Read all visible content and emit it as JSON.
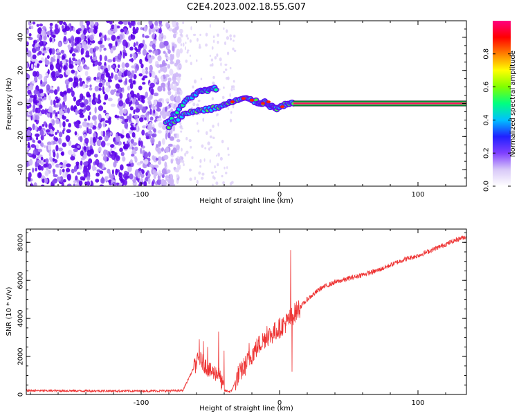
{
  "title": "C2E4.2023.002.18.55.G07",
  "colors": {
    "snr_line": "#ee3333",
    "cbar": [
      "#ffffff",
      "#d8c8f8",
      "#8040ff",
      "#2020ff",
      "#00c0ff",
      "#00ff80",
      "#80ff00",
      "#ffff00",
      "#ff8000",
      "#ff0000",
      "#ff0080"
    ]
  },
  "chart_data": [
    {
      "type": "heatmap",
      "name": "spectrogram",
      "xlabel": "Height of straight line (km)",
      "ylabel": "Frequency (Hz)",
      "xlim": [
        -183,
        135
      ],
      "ylim": [
        -50,
        50
      ],
      "xticks": [
        -100,
        0,
        100
      ],
      "xtick_labels": [
        "-100",
        "0",
        "100"
      ],
      "yticks": [
        -40,
        -20,
        0,
        20,
        40
      ],
      "ytick_labels": [
        "-40",
        "-20",
        "0",
        "20",
        "40"
      ],
      "colorbar": {
        "label": "Normalized spectral amplitude",
        "range": [
          0,
          1
        ],
        "ticks": [
          0.0,
          0.2,
          0.4,
          0.6,
          0.8
        ],
        "tick_labels": [
          "0.0",
          "0.2",
          "0.4",
          "0.6",
          "0.8"
        ]
      },
      "track": {
        "upper_branch": [
          [
            -82,
            -12
          ],
          [
            -74,
            -5
          ],
          [
            -66,
            3
          ],
          [
            -58,
            7
          ],
          [
            -52,
            8
          ],
          [
            -46,
            9
          ]
        ],
        "lower_branch": [
          [
            -80,
            -14
          ],
          [
            -72,
            -8
          ],
          [
            -64,
            -5
          ],
          [
            -56,
            -4
          ],
          [
            -48,
            -3
          ],
          [
            -40,
            -1
          ],
          [
            -34,
            1
          ],
          [
            -26,
            3
          ],
          [
            -20,
            2
          ],
          [
            -14,
            0
          ],
          [
            -10,
            1
          ],
          [
            -6,
            -2
          ],
          [
            -2,
            -3
          ],
          [
            4,
            -1
          ],
          [
            10,
            0
          ]
        ],
        "steady_line": [
          [
            10,
            0
          ],
          [
            135,
            0
          ]
        ]
      }
    },
    {
      "type": "line",
      "name": "snr",
      "xlabel": "Height of straight line (km)",
      "ylabel": "SNR (10 * v/v)",
      "xlim": [
        -183,
        135
      ],
      "ylim": [
        0,
        8700
      ],
      "xticks": [
        -100,
        0,
        100
      ],
      "xtick_labels": [
        "-100",
        "0",
        "100"
      ],
      "yticks": [
        0,
        2000,
        4000,
        6000,
        8000
      ],
      "ytick_labels": [
        "0",
        "2000",
        "4000",
        "6000",
        "8000"
      ],
      "envelope": {
        "x": [
          -183,
          -100,
          -70,
          -62,
          -58,
          -50,
          -44,
          -40,
          -35,
          -30,
          -25,
          -20,
          -15,
          -10,
          -5,
          0,
          5,
          8,
          10,
          15,
          20,
          25,
          30,
          40,
          50,
          60,
          70,
          80,
          90,
          100,
          110,
          120,
          130,
          135
        ],
        "y": [
          200,
          180,
          200,
          1400,
          1900,
          1200,
          1100,
          200,
          150,
          1000,
          1500,
          2100,
          2600,
          3000,
          3200,
          3500,
          3800,
          4000,
          4200,
          4600,
          5000,
          5300,
          5600,
          5900,
          6100,
          6300,
          6500,
          6800,
          7100,
          7300,
          7600,
          7900,
          8200,
          8300
        ]
      },
      "spikes": [
        {
          "x": -58,
          "y": 2900
        },
        {
          "x": -55,
          "y": 2800
        },
        {
          "x": -52,
          "y": 2500
        },
        {
          "x": -44,
          "y": 3300
        },
        {
          "x": -40,
          "y": 2300
        },
        {
          "x": -22,
          "y": 2700
        },
        {
          "x": -9,
          "y": 3600
        },
        {
          "x": -7,
          "y": 3400
        },
        {
          "x": 8,
          "y": 7600
        },
        {
          "x": 9,
          "y": 1200
        }
      ]
    }
  ]
}
